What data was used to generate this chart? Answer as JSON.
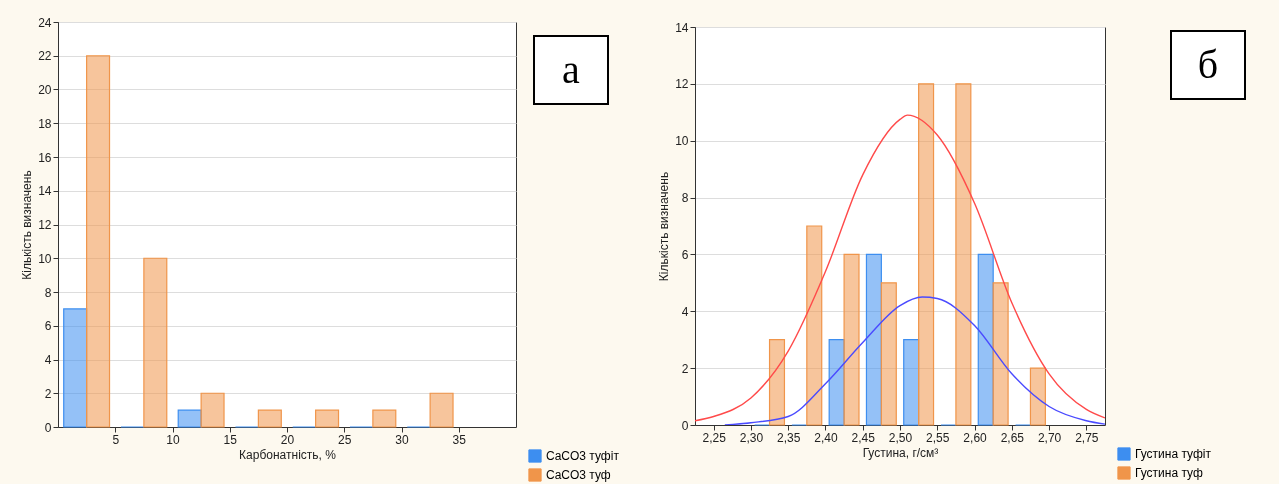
{
  "chart_data": [
    {
      "type": "histogram",
      "xlabel": "Карбонатність, %",
      "ylabel": "Кількість визначень",
      "bins": [
        0,
        5,
        10,
        15,
        20,
        25,
        30,
        35
      ],
      "xlim": [
        0,
        40
      ],
      "xticks": [
        5,
        10,
        15,
        20,
        25,
        30,
        35
      ],
      "ylim": [
        0,
        24
      ],
      "yticks": [
        0,
        2,
        4,
        6,
        8,
        10,
        12,
        14,
        16,
        18,
        20,
        22,
        24
      ],
      "grid": "y",
      "legend": "bottom right",
      "annotations": [
        "а"
      ],
      "series": [
        {
          "name": "CaCO3 туфіт",
          "color": "#3d8ef0",
          "values": [
            7,
            0,
            1,
            0,
            0,
            0,
            0
          ]
        },
        {
          "name": "CaCO3 туф",
          "color": "#f0954a",
          "values": [
            22,
            10,
            2,
            1,
            1,
            1,
            2
          ]
        }
      ]
    },
    {
      "type": "histogram",
      "xlabel": "Густина, г/см³",
      "ylabel": "Кількість визначень",
      "bins": [
        2.3,
        2.35,
        2.4,
        2.45,
        2.5,
        2.55,
        2.6,
        2.65,
        2.7
      ],
      "xlim": [
        2.225,
        2.775
      ],
      "xticks": [
        {
          "value": 2.25,
          "label": "2,25"
        },
        {
          "value": 2.3,
          "label": "2,30"
        },
        {
          "value": 2.35,
          "label": "2,35"
        },
        {
          "value": 2.4,
          "label": "2,40"
        },
        {
          "value": 2.45,
          "label": "2,45"
        },
        {
          "value": 2.5,
          "label": "2,50"
        },
        {
          "value": 2.55,
          "label": "2,55"
        },
        {
          "value": 2.6,
          "label": "2,60"
        },
        {
          "value": 2.65,
          "label": "2,65"
        },
        {
          "value": 2.7,
          "label": "2,70"
        },
        {
          "value": 2.75,
          "label": "2,75"
        }
      ],
      "ylim": [
        0,
        14
      ],
      "yticks": [
        0,
        2,
        4,
        6,
        8,
        10,
        12,
        14
      ],
      "grid": "y",
      "legend": "bottom right",
      "annotations": [
        "б"
      ],
      "series": [
        {
          "name": "Густина туфіт",
          "color": "#3d8ef0",
          "values": [
            0,
            0,
            3,
            6,
            3,
            0,
            6,
            0
          ]
        },
        {
          "name": "Густина туф",
          "color": "#f0954a",
          "values": [
            3,
            7,
            6,
            5,
            12,
            12,
            5,
            2
          ]
        },
        {
          "type": "line",
          "color": "#ff4a4a",
          "x": [
            2.225,
            2.25,
            2.3,
            2.35,
            2.4,
            2.45,
            2.5,
            2.51,
            2.55,
            2.6,
            2.65,
            2.7,
            2.75,
            2.775
          ],
          "values": [
            0.15,
            0.3,
            0.95,
            2.6,
            5.4,
            8.8,
            10.75,
            10.9,
            10.2,
            7.8,
            4.3,
            1.8,
            0.55,
            0.25
          ]
        },
        {
          "type": "line",
          "color": "#4a4aff",
          "x": [
            2.265,
            2.3,
            2.35,
            2.4,
            2.45,
            2.5,
            2.53,
            2.55,
            2.6,
            2.65,
            2.7,
            2.75,
            2.775
          ],
          "values": [
            0,
            0.08,
            0.3,
            1.45,
            2.9,
            4.2,
            4.5,
            4.45,
            3.5,
            1.8,
            0.65,
            0.15,
            0.03
          ]
        }
      ]
    }
  ]
}
